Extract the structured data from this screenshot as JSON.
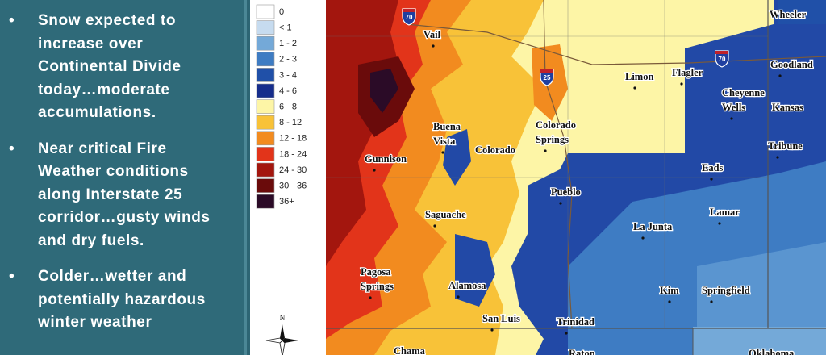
{
  "bullets": [
    "Snow expected to increase over Continental Divide today…moderate accumulations.",
    "Near critical Fire Weather conditions along Interstate 25 corridor…gusty winds and dry fuels.",
    "Colder…wetter and potentially hazardous winter weather"
  ],
  "legend": [
    {
      "label": "0",
      "color": "#ffffff"
    },
    {
      "label": "< 1",
      "color": "#c6dbef"
    },
    {
      "label": "1 - 2",
      "color": "#74a9d8"
    },
    {
      "label": "2 - 3",
      "color": "#3e7cc3"
    },
    {
      "label": "3 - 4",
      "color": "#2050a8"
    },
    {
      "label": "4 - 6",
      "color": "#162d8c"
    },
    {
      "label": "6 - 8",
      "color": "#fdf5a6"
    },
    {
      "label": "8 - 12",
      "color": "#f8c238"
    },
    {
      "label": "12 - 18",
      "color": "#f28b1f"
    },
    {
      "label": "18 - 24",
      "color": "#e2341a"
    },
    {
      "label": "24 - 30",
      "color": "#a3160e"
    },
    {
      "label": "30 - 36",
      "color": "#6a0b0b"
    },
    {
      "label": "36+",
      "color": "#2b0b27"
    }
  ],
  "compass": "N",
  "highways": [
    "70",
    "25",
    "70"
  ],
  "cities": [
    {
      "lines": [
        "Wheeler"
      ]
    },
    {
      "lines": [
        "Vail"
      ]
    },
    {
      "lines": [
        "Goodland"
      ]
    },
    {
      "lines": [
        "Limon"
      ]
    },
    {
      "lines": [
        "Flagler"
      ]
    },
    {
      "lines": [
        "Cheyenne",
        "Wells"
      ]
    },
    {
      "lines": [
        "Kansas"
      ]
    },
    {
      "lines": [
        "Buena",
        "Vista"
      ]
    },
    {
      "lines": [
        "Colorado",
        "Springs"
      ]
    },
    {
      "lines": [
        "Colorado"
      ]
    },
    {
      "lines": [
        "Gunnison"
      ]
    },
    {
      "lines": [
        "Tribune"
      ]
    },
    {
      "lines": [
        "Eads"
      ]
    },
    {
      "lines": [
        "Pueblo"
      ]
    },
    {
      "lines": [
        "Saguache"
      ]
    },
    {
      "lines": [
        "Lamar"
      ]
    },
    {
      "lines": [
        "La Junta"
      ]
    },
    {
      "lines": [
        "Pagosa",
        "Springs"
      ]
    },
    {
      "lines": [
        "Alamosa"
      ]
    },
    {
      "lines": [
        "Kim"
      ]
    },
    {
      "lines": [
        "Springfield"
      ]
    },
    {
      "lines": [
        "San Luis"
      ]
    },
    {
      "lines": [
        "Trinidad"
      ]
    },
    {
      "lines": [
        "Chama"
      ]
    },
    {
      "lines": [
        "Raton"
      ]
    },
    {
      "lines": [
        "Oklahoma"
      ]
    }
  ]
}
